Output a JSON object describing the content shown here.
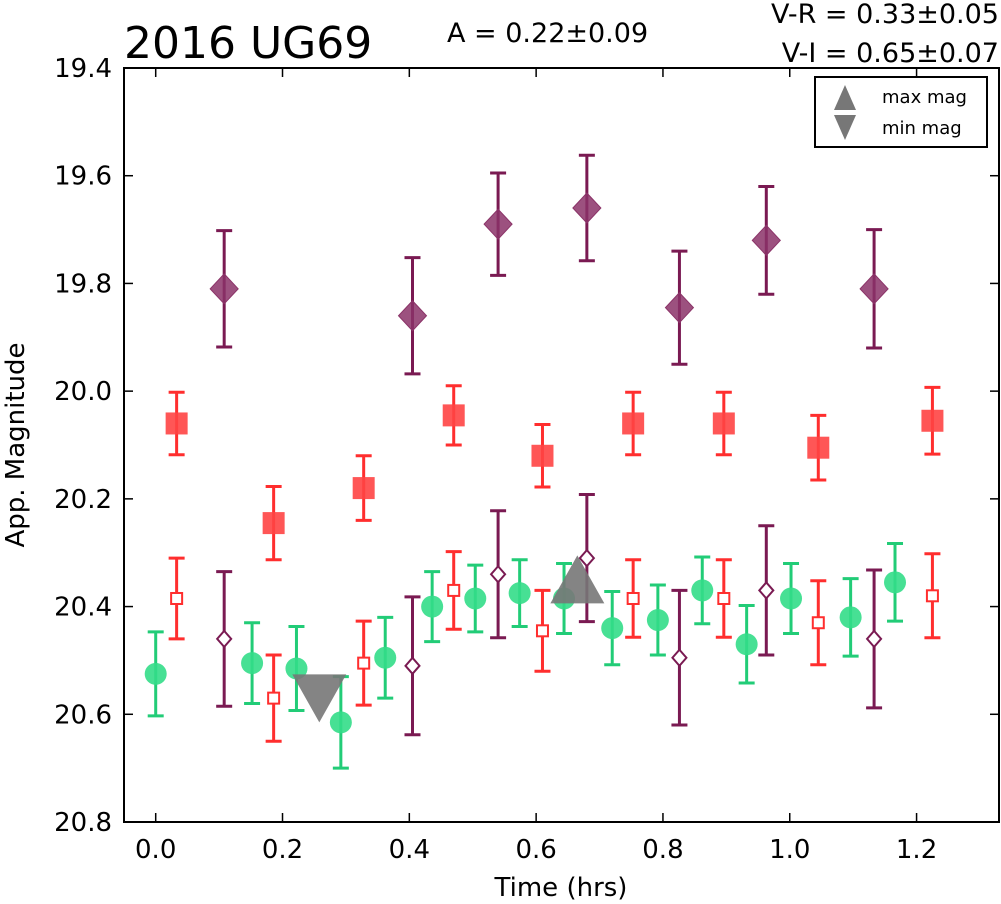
{
  "chart_data": {
    "type": "scatter",
    "title": "2016 UG69",
    "annotations": {
      "amplitude": "A  = 0.22±0.09",
      "v_r": "V-R = 0.33±0.05",
      "v_i": "V-I  = 0.65±0.07"
    },
    "xlabel": "Time (hrs)",
    "ylabel": "App. Magnitude",
    "xlim": [
      -0.05,
      1.33
    ],
    "ylim": [
      20.8,
      19.4
    ],
    "y_inverted": true,
    "xticks": [
      "0.0",
      "0.2",
      "0.4",
      "0.6",
      "0.8",
      "1.0",
      "1.2"
    ],
    "xtick_values": [
      0.0,
      0.2,
      0.4,
      0.6,
      0.8,
      1.0,
      1.2
    ],
    "yticks": [
      "19.4",
      "19.6",
      "19.8",
      "20.0",
      "20.2",
      "20.4",
      "20.6",
      "20.8"
    ],
    "ytick_values": [
      19.4,
      19.6,
      19.8,
      20.0,
      20.2,
      20.4,
      20.6,
      20.8
    ],
    "grid": false,
    "legend": {
      "placement": "top-right",
      "entries": [
        {
          "label": "max mag",
          "marker": "triangle-up"
        },
        {
          "label": "min mag",
          "marker": "triangle-down"
        }
      ]
    },
    "colors": {
      "purple": "#7a1a52",
      "purple_fill": "#8b3368",
      "red": "#ff2e2e",
      "red_fill": "#ff4444",
      "green": "#22cc77",
      "green_fill": "#33dd88",
      "gray": "#777777"
    },
    "series": [
      {
        "marker": "diamond-filled",
        "color": "purple",
        "points": [
          {
            "x": 0.108,
            "y": 19.81,
            "err": 0.108
          },
          {
            "x": 0.405,
            "y": 19.86,
            "err": 0.108
          },
          {
            "x": 0.54,
            "y": 19.69,
            "err": 0.095
          },
          {
            "x": 0.68,
            "y": 19.66,
            "err": 0.098
          },
          {
            "x": 0.826,
            "y": 19.845,
            "err": 0.105
          },
          {
            "x": 0.963,
            "y": 19.72,
            "err": 0.1
          },
          {
            "x": 1.133,
            "y": 19.81,
            "err": 0.11
          }
        ]
      },
      {
        "marker": "square-filled",
        "color": "red",
        "points": [
          {
            "x": 0.033,
            "y": 20.06,
            "err": 0.058
          },
          {
            "x": 0.186,
            "y": 20.245,
            "err": 0.068
          },
          {
            "x": 0.328,
            "y": 20.18,
            "err": 0.06
          },
          {
            "x": 0.47,
            "y": 20.045,
            "err": 0.055
          },
          {
            "x": 0.61,
            "y": 20.12,
            "err": 0.058
          },
          {
            "x": 0.753,
            "y": 20.06,
            "err": 0.058
          },
          {
            "x": 0.896,
            "y": 20.06,
            "err": 0.058
          },
          {
            "x": 1.045,
            "y": 20.105,
            "err": 0.06
          },
          {
            "x": 1.225,
            "y": 20.055,
            "err": 0.062
          }
        ]
      },
      {
        "marker": "circle-filled",
        "color": "green",
        "points": [
          {
            "x": 0.0,
            "y": 20.525,
            "err": 0.078
          },
          {
            "x": 0.152,
            "y": 20.505,
            "err": 0.075
          },
          {
            "x": 0.222,
            "y": 20.515,
            "err": 0.078
          },
          {
            "x": 0.292,
            "y": 20.615,
            "err": 0.085
          },
          {
            "x": 0.362,
            "y": 20.495,
            "err": 0.075
          },
          {
            "x": 0.436,
            "y": 20.4,
            "err": 0.065
          },
          {
            "x": 0.504,
            "y": 20.385,
            "err": 0.062
          },
          {
            "x": 0.574,
            "y": 20.375,
            "err": 0.062
          },
          {
            "x": 0.644,
            "y": 20.385,
            "err": 0.065
          },
          {
            "x": 0.72,
            "y": 20.44,
            "err": 0.068
          },
          {
            "x": 0.792,
            "y": 20.425,
            "err": 0.065
          },
          {
            "x": 0.862,
            "y": 20.37,
            "err": 0.062
          },
          {
            "x": 0.932,
            "y": 20.47,
            "err": 0.072
          },
          {
            "x": 1.002,
            "y": 20.385,
            "err": 0.065
          },
          {
            "x": 1.096,
            "y": 20.42,
            "err": 0.072
          },
          {
            "x": 1.166,
            "y": 20.355,
            "err": 0.072
          }
        ]
      },
      {
        "marker": "square-open",
        "color": "red",
        "points": [
          {
            "x": 0.033,
            "y": 20.385,
            "err": 0.075
          },
          {
            "x": 0.186,
            "y": 20.57,
            "err": 0.08
          },
          {
            "x": 0.328,
            "y": 20.505,
            "err": 0.078
          },
          {
            "x": 0.47,
            "y": 20.37,
            "err": 0.072
          },
          {
            "x": 0.61,
            "y": 20.445,
            "err": 0.075
          },
          {
            "x": 0.753,
            "y": 20.385,
            "err": 0.072
          },
          {
            "x": 0.896,
            "y": 20.385,
            "err": 0.072
          },
          {
            "x": 1.045,
            "y": 20.43,
            "err": 0.078
          },
          {
            "x": 1.225,
            "y": 20.38,
            "err": 0.078
          }
        ]
      },
      {
        "marker": "diamond-open",
        "color": "purple",
        "points": [
          {
            "x": 0.108,
            "y": 20.46,
            "err": 0.125
          },
          {
            "x": 0.405,
            "y": 20.51,
            "err": 0.128
          },
          {
            "x": 0.54,
            "y": 20.34,
            "err": 0.118
          },
          {
            "x": 0.68,
            "y": 20.31,
            "err": 0.118
          },
          {
            "x": 0.826,
            "y": 20.495,
            "err": 0.125
          },
          {
            "x": 0.963,
            "y": 20.37,
            "err": 0.12
          },
          {
            "x": 1.133,
            "y": 20.46,
            "err": 0.128
          }
        ]
      }
    ],
    "extrema": [
      {
        "label": "min mag",
        "marker": "triangle-down",
        "x": 0.258,
        "y": 20.565
      },
      {
        "label": "max mag",
        "marker": "triangle-up",
        "x": 0.665,
        "y": 20.355
      }
    ]
  }
}
